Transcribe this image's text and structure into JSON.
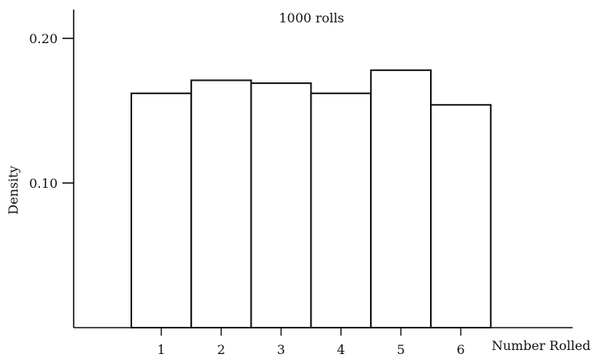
{
  "chart_data": {
    "type": "bar",
    "title": "1000 rolls",
    "xlabel": "Number Rolled",
    "ylabel": "Density",
    "categories": [
      "1",
      "2",
      "3",
      "4",
      "5",
      "6"
    ],
    "values": [
      0.162,
      0.171,
      0.169,
      0.162,
      0.178,
      0.154
    ],
    "ylim": [
      0,
      0.22
    ],
    "yticks": [
      {
        "value": 0.1,
        "label": "0.10"
      },
      {
        "value": 0.2,
        "label": "0.20"
      }
    ],
    "grid": false,
    "legend": "none",
    "bar_fill": "#ffffff",
    "bar_stroke": "#111111"
  }
}
